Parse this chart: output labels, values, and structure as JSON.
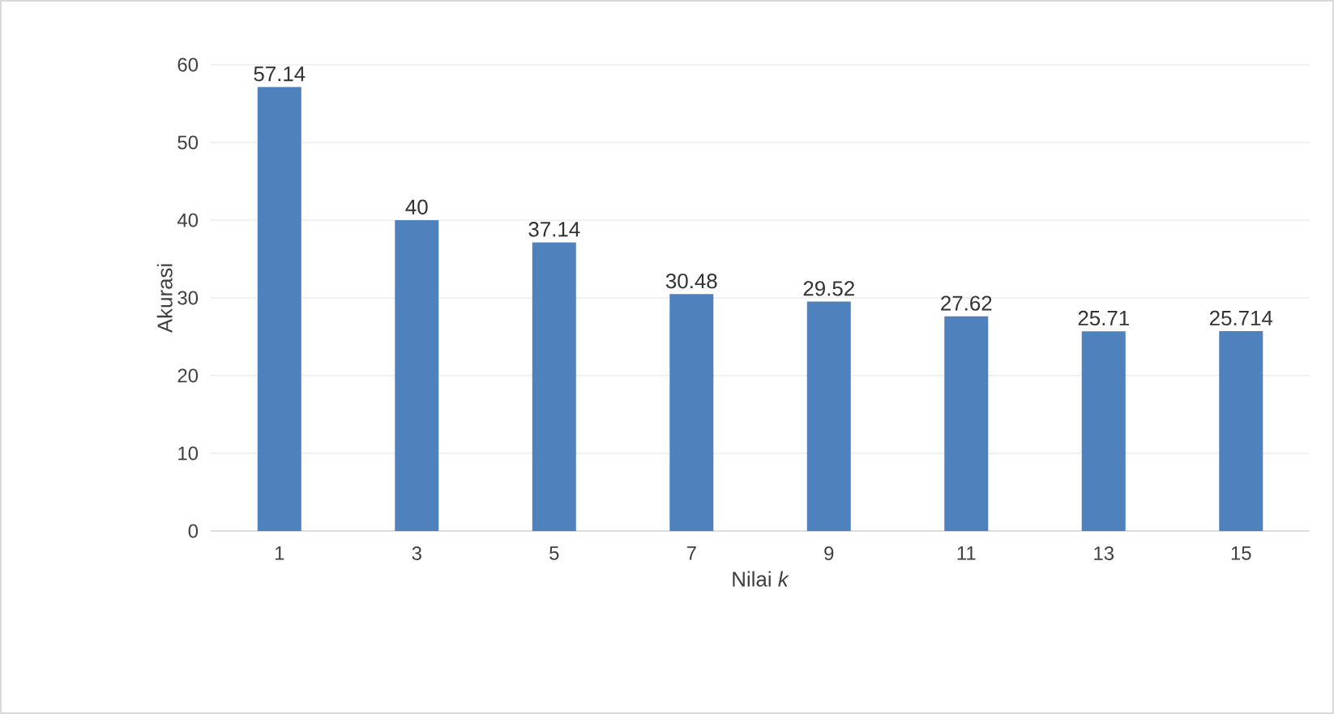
{
  "chart_data": {
    "type": "bar",
    "xlabel": "Nilai *k*",
    "ylabel": "Akurasi",
    "categories": [
      "1",
      "3",
      "5",
      "7",
      "9",
      "11",
      "13",
      "15"
    ],
    "values": [
      57.14,
      40,
      37.14,
      30.48,
      29.52,
      27.62,
      25.71,
      25.714
    ],
    "color": "#4f81bd",
    "ylim": [
      0,
      60
    ],
    "yticks": [
      0,
      10,
      20,
      30,
      40,
      50,
      60
    ],
    "grid": "y",
    "data_labels": true
  }
}
